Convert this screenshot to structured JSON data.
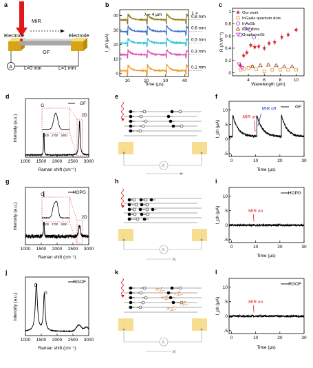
{
  "panel_letters": [
    "a",
    "b",
    "c",
    "d",
    "e",
    "f",
    "g",
    "h",
    "i",
    "j",
    "k",
    "l"
  ],
  "panel_a": {
    "mir": "MIR",
    "electrode_left": "Electrode",
    "electrode_right": "Electrode",
    "sample": "GF",
    "ammeter": "A",
    "pos_left": "L=0 mm",
    "pos_right": "L=1 mm"
  },
  "legend_c": [
    {
      "label": "Our work",
      "color": "#d0232a",
      "marker": "star"
    },
    {
      "label": "InGaAs quantum dots",
      "color": "#e69138",
      "marker": "square"
    },
    {
      "label": "InAsSb",
      "color": "#7b3fb3",
      "marker": "circle"
    },
    {
      "label": "CNT films",
      "color": "#8b4513",
      "marker": "triangle-up"
    },
    {
      "label": "Graphene/Si",
      "color": "#d633d6",
      "marker": "triangle-down"
    }
  ],
  "chart_data": [
    {
      "panel": "b",
      "type": "line",
      "annotation": "λ = 4 μm",
      "xlabel": "Time (μs)",
      "ylabel": "I_ph (μA)",
      "xlim": [
        6,
        42
      ],
      "ylim": [
        -2,
        44
      ],
      "xticks": [
        10,
        20,
        30,
        40
      ],
      "yticks": [
        0,
        10,
        20,
        30,
        40
      ],
      "legend_title": "L =",
      "pulse_times": [
        10.2,
        20.4,
        30.6,
        40.8
      ],
      "series": [
        {
          "name": "0.8 mm",
          "color": "#8b7d1a",
          "baseline": 37,
          "peak": 4.5
        },
        {
          "name": "0.6 mm",
          "color": "#3a6fc4",
          "baseline": 29,
          "peak": 4
        },
        {
          "name": "0.5 mm",
          "color": "#33c2d6",
          "baseline": 21,
          "peak": 3.5
        },
        {
          "name": "0.3 mm",
          "color": "#e24fb5",
          "baseline": 13,
          "peak": 3.5
        },
        {
          "name": "0.1 mm",
          "color": "#f09a2a",
          "baseline": 2,
          "peak": 4.5
        }
      ]
    },
    {
      "panel": "c",
      "type": "scatter",
      "xlabel": "Wavelength (μm)",
      "ylabel": "R (A W⁻¹)",
      "xlim": [
        2,
        11
      ],
      "ylim": [
        -0.05,
        1.05
      ],
      "xticks": [
        4,
        6,
        8,
        10
      ],
      "yticks": [
        0,
        0.2,
        0.4,
        0.6,
        0.8,
        1.0
      ],
      "series": [
        {
          "name": "Our work",
          "x": [
            3.0,
            3.4,
            3.8,
            4.3,
            4.8,
            5.3,
            6.0,
            6.6,
            7.3,
            8.2,
            9.0,
            10.0
          ],
          "y": [
            0.12,
            0.28,
            0.33,
            0.45,
            0.42,
            0.43,
            0.4,
            0.48,
            0.5,
            0.58,
            0.62,
            0.7
          ]
        },
        {
          "name": "InGaAs quantum dots",
          "x": [
            3.0,
            3.5,
            4.0,
            4.5,
            5.0,
            6.0,
            7.0,
            8.0,
            9.0,
            10.0
          ],
          "y": [
            0.05,
            0.06,
            0.08,
            0.1,
            0.06,
            0.02,
            0.05,
            0.05,
            0.05,
            0.05
          ]
        },
        {
          "name": "InAsSb",
          "x": [
            3.0,
            3.6,
            4.2,
            4.7
          ],
          "y": [
            0.62,
            0.72,
            0.7,
            0.58
          ]
        },
        {
          "name": "CNT films",
          "x": [
            4.5,
            5.5,
            6.5,
            7.5,
            8.5,
            9.5
          ],
          "y": [
            0.1,
            0.12,
            0.13,
            0.12,
            0.1,
            0.1
          ]
        },
        {
          "name": "Graphene/Si",
          "x": [
            2.8,
            3.2
          ],
          "y": [
            0.14,
            0.08
          ]
        }
      ]
    },
    {
      "panel": "d",
      "type": "line",
      "legend": "GF",
      "xlabel": "Raman shift (cm⁻¹)",
      "ylabel": "Intensity (a.u.)",
      "xlim": [
        1000,
        3000
      ],
      "xticks": [
        1000,
        1500,
        2000,
        2500,
        3000
      ],
      "peak_labels": [
        "G",
        "2D"
      ],
      "inset_xticks": [
        "2600",
        "2700",
        "2800"
      ]
    },
    {
      "panel": "f",
      "type": "line",
      "legend": "GF",
      "xlabel": "Time (μs)",
      "ylabel": "I_ph (μA)",
      "xlim": [
        -1,
        30
      ],
      "ylim": [
        -6,
        13
      ],
      "xticks": [
        0,
        10,
        20,
        30
      ],
      "yticks": [
        -5,
        0,
        5,
        10
      ],
      "annotations": [
        "MIR on",
        "MIR off"
      ],
      "pulse_times": [
        0.5,
        10.5,
        20.6
      ]
    },
    {
      "panel": "g",
      "type": "line",
      "legend": "HOPG",
      "xlabel": "Raman shift (cm⁻¹)",
      "ylabel": "Intensity (a.u.)",
      "xlim": [
        1000,
        3000
      ],
      "xticks": [
        1000,
        1500,
        2000,
        2500,
        3000
      ],
      "peak_labels": [
        "G",
        "2D"
      ],
      "inset_xticks": [
        "2600",
        "2700",
        "2800"
      ]
    },
    {
      "panel": "i",
      "type": "line",
      "legend": "HOPG",
      "xlabel": "Time (μs)",
      "ylabel": "I_ph (μA)",
      "xlim": [
        -1,
        30
      ],
      "ylim": [
        -6,
        13
      ],
      "xticks": [
        0,
        10,
        20,
        30
      ],
      "yticks": [
        -5,
        0,
        5,
        10
      ],
      "annotations": [
        "MIR on"
      ]
    },
    {
      "panel": "j",
      "type": "line",
      "legend": "RGOF",
      "xlabel": "Raman shift (cm⁻¹)",
      "ylabel": "Intensity (a.u.)",
      "xlim": [
        1000,
        3000
      ],
      "xticks": [
        1000,
        1500,
        2000,
        2500,
        3000
      ],
      "peak_labels": [
        "D",
        "G"
      ]
    },
    {
      "panel": "l",
      "type": "line",
      "legend": "RGOF",
      "xlabel": "Time (μs)",
      "ylabel": "I_ph (μA)",
      "xlim": [
        -1,
        30
      ],
      "ylim": [
        -6,
        13
      ],
      "xticks": [
        0,
        10,
        20,
        30
      ],
      "yticks": [
        -5,
        0,
        5,
        10
      ],
      "annotations": [
        "MIR on"
      ]
    }
  ],
  "schematics": {
    "ammeter": "A",
    "e_blocked": "×",
    "h_blocked": "×"
  }
}
